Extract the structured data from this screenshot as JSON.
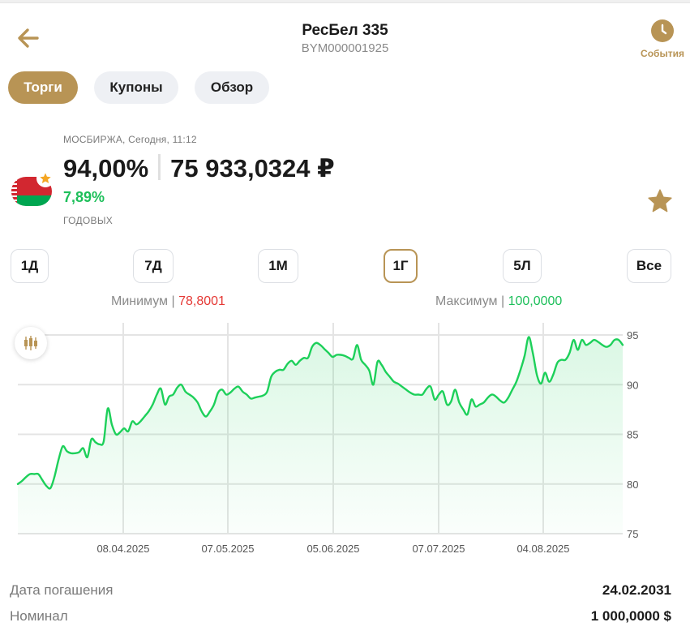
{
  "header": {
    "title": "РесБел 335",
    "subtitle": "BYM000001925",
    "events_label": "События",
    "back_icon": "arrow-left-icon",
    "events_icon": "clock-icon"
  },
  "tabs": [
    {
      "label": "Торги",
      "active": true
    },
    {
      "label": "Купоны",
      "active": false
    },
    {
      "label": "Обзор",
      "active": false
    }
  ],
  "quote": {
    "source": "МОСБИРЖА, Сегодня, 11:12",
    "price_percent": "94,00%",
    "price_value": "75 933,0324 ₽",
    "yield": "7,89%",
    "yield_label": "ГОДОВЫХ",
    "flag_icon": "belarus-flag-icon",
    "favorite_icon": "star-icon"
  },
  "periods": [
    {
      "label": "1Д",
      "active": false
    },
    {
      "label": "7Д",
      "active": false
    },
    {
      "label": "1М",
      "active": false
    },
    {
      "label": "1Г",
      "active": true
    },
    {
      "label": "5Л",
      "active": false
    },
    {
      "label": "Все",
      "active": false
    }
  ],
  "stats": {
    "min_label": "Минимум",
    "min_value": "78,8001",
    "max_label": "Максимум",
    "max_value": "100,0000"
  },
  "colors": {
    "accent": "#b89455",
    "line": "#1dd05a",
    "min": "#e53935",
    "max": "#1dbf5a"
  },
  "chart_data": {
    "type": "area",
    "ylim": [
      75,
      96
    ],
    "y_ticks": [
      95,
      90,
      85,
      80,
      75
    ],
    "x_tick_labels": [
      "08.04.2025",
      "07.05.2025",
      "05.06.2025",
      "07.07.2025",
      "04.08.2025"
    ],
    "grid": true,
    "series": [
      {
        "values": [
          80.0,
          80.3,
          80.7,
          81.0,
          81.0,
          81.0,
          80.4,
          79.8,
          79.6,
          80.8,
          82.5,
          83.8,
          83.3,
          83.1,
          83.1,
          83.2,
          83.6,
          82.7,
          84.5,
          84.2,
          84.0,
          84.3,
          87.6,
          86.0,
          85.0,
          85.2,
          85.6,
          85.3,
          86.3,
          86.0,
          86.3,
          86.8,
          87.3,
          88.0,
          89.0,
          89.6,
          88.0,
          88.8,
          89.0,
          89.7,
          90.0,
          89.3,
          89.0,
          88.7,
          88.2,
          87.3,
          86.8,
          87.3,
          88.0,
          89.2,
          89.5,
          89.0,
          89.2,
          89.6,
          89.8,
          89.3,
          89.0,
          88.6,
          88.7,
          88.8,
          88.9,
          89.3,
          90.8,
          91.3,
          91.5,
          91.5,
          92.1,
          92.4,
          92.0,
          92.4,
          92.7,
          92.7,
          93.8,
          94.2,
          94.0,
          93.6,
          93.2,
          92.8,
          93.0,
          93.0,
          92.9,
          92.7,
          92.6,
          94.0,
          92.5,
          92.0,
          91.4,
          90.0,
          92.3,
          92.0,
          91.3,
          90.8,
          90.3,
          90.1,
          89.8,
          89.5,
          89.2,
          89.0,
          89.0,
          89.0,
          89.6,
          89.8,
          88.5,
          89.0,
          89.3,
          88.0,
          88.3,
          89.5,
          88.2,
          87.5,
          87.0,
          88.5,
          87.8,
          88.0,
          88.2,
          88.7,
          89.0,
          88.8,
          88.4,
          88.2,
          88.7,
          89.5,
          90.3,
          91.5,
          92.9,
          94.8,
          93.2,
          91.0,
          90.1,
          91.2,
          90.3,
          91.0,
          92.2,
          92.5,
          92.5,
          93.2,
          94.5,
          93.5,
          94.5,
          94.0,
          94.2,
          94.5,
          94.3,
          94.0,
          93.8,
          94.0,
          94.5,
          94.5,
          94.0
        ]
      }
    ]
  },
  "bond_info": [
    {
      "label": "Дата погашения",
      "value": "24.02.2031"
    },
    {
      "label": "Номинал",
      "value": "1 000,0000 $"
    }
  ],
  "chart_mode_icon": "candlestick-icon"
}
